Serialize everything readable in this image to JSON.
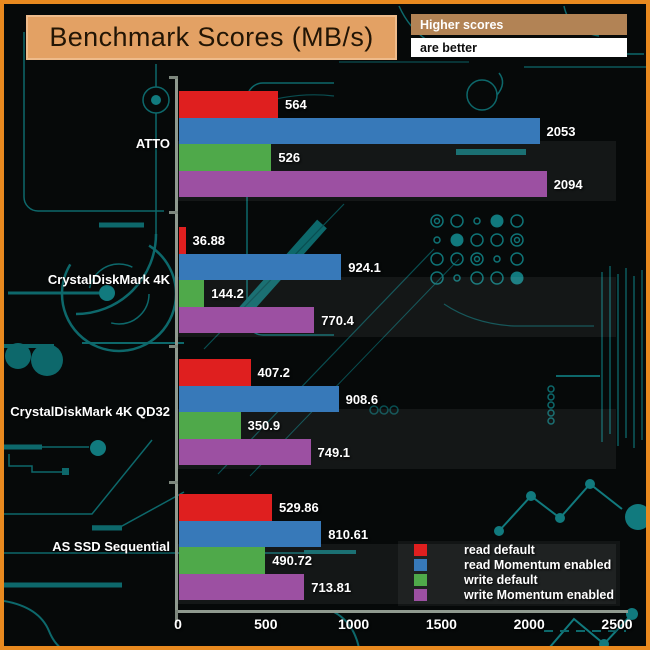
{
  "title": "Benchmark Scores (MB/s)",
  "callout": {
    "line1": "Higher scores",
    "line2": "are better"
  },
  "colors": {
    "frame": "#e8891f",
    "title_bg": "#e3a164",
    "callout_tan_bg": "#b28355",
    "callout_white_bg": "#ffffff",
    "background": "#060909",
    "circuit_trace": "#0d686b",
    "axis": "#8f9a8f",
    "read_default": "#df1f1f",
    "read_momentum": "#3779b9",
    "write_default": "#4fa94a",
    "write_momentum": "#9c50a2"
  },
  "chart_data": {
    "type": "bar",
    "orientation": "horizontal",
    "title": "Benchmark Scores (MB/s)",
    "categories": [
      "ATTO",
      "CrystalDiskMark 4K",
      "CrystalDiskMark 4K QD32",
      "AS SSD Sequential"
    ],
    "series": [
      {
        "name": "read default",
        "color": "#df1f1f",
        "values": [
          564,
          36.88,
          407.2,
          529.86
        ]
      },
      {
        "name": "read Momentum enabled",
        "color": "#3779b9",
        "values": [
          2053,
          924.1,
          908.6,
          810.61
        ]
      },
      {
        "name": "write default",
        "color": "#4fa94a",
        "values": [
          526,
          144.2,
          350.9,
          490.72
        ]
      },
      {
        "name": "write Momentum enabled",
        "color": "#9c50a2",
        "values": [
          2094,
          770.4,
          749.1,
          713.81
        ]
      }
    ],
    "xlim": [
      0,
      2500
    ],
    "x_ticks": [
      "0",
      "500",
      "1000",
      "1500",
      "2000",
      "2500"
    ],
    "value_labels": true,
    "grid": false,
    "legend_position": "bottom-right",
    "legend_entries": [
      "read default",
      "read Momentum enabled",
      "write default",
      "write Momentum enabled"
    ]
  }
}
